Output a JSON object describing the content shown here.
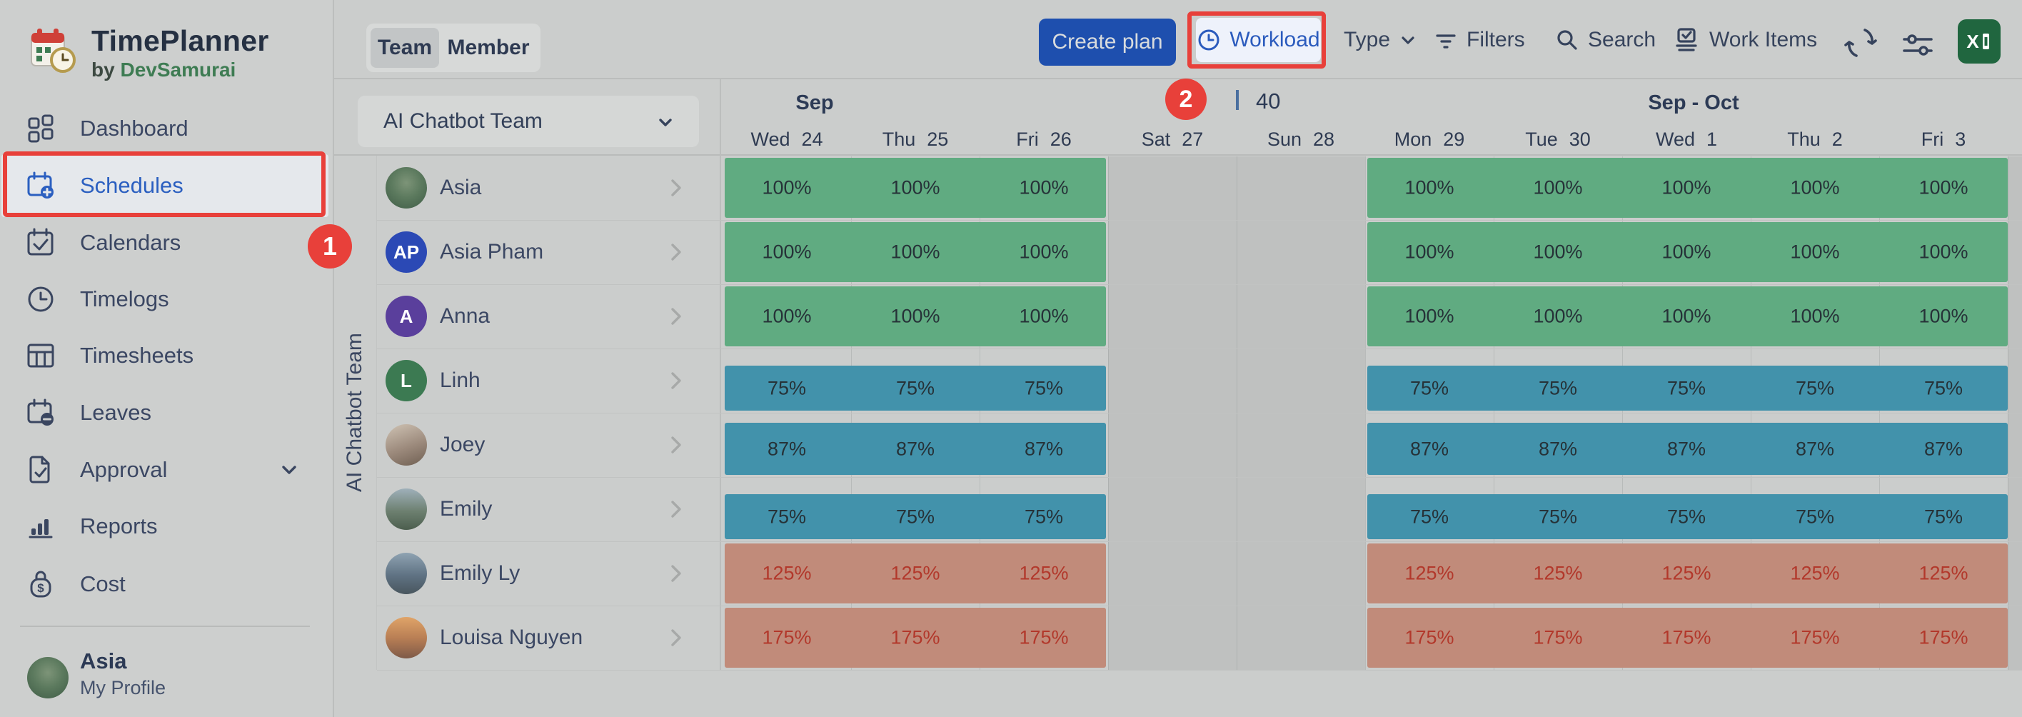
{
  "app": {
    "title": "TimePlanner",
    "byline_prefix": "by",
    "byline_brand": "DevSamurai",
    "logo_icon": "calendar-clock-logo"
  },
  "sidebar": {
    "items": [
      {
        "label": "Dashboard",
        "icon": "grid-icon",
        "active": false,
        "expandable": false
      },
      {
        "label": "Schedules",
        "icon": "calendar-plus-icon",
        "active": true,
        "expandable": false
      },
      {
        "label": "Calendars",
        "icon": "calendar-check-icon",
        "active": false,
        "expandable": false
      },
      {
        "label": "Timelogs",
        "icon": "clock-icon",
        "active": false,
        "expandable": false
      },
      {
        "label": "Timesheets",
        "icon": "table-icon",
        "active": false,
        "expandable": false
      },
      {
        "label": "Leaves",
        "icon": "calendar-minus-icon",
        "active": false,
        "expandable": false
      },
      {
        "label": "Approval",
        "icon": "document-check-icon",
        "active": false,
        "expandable": true
      },
      {
        "label": "Reports",
        "icon": "bar-chart-icon",
        "active": false,
        "expandable": false
      },
      {
        "label": "Cost",
        "icon": "money-bag-icon",
        "active": false,
        "expandable": false
      }
    ],
    "profile": {
      "name": "Asia",
      "subtitle": "My Profile",
      "avatar_palette": "park"
    }
  },
  "toolbar": {
    "view_tabs": [
      {
        "label": "Team",
        "active": true
      },
      {
        "label": "Member",
        "active": false
      }
    ],
    "create_plan_label": "Create plan",
    "workload_label": "Workload",
    "type_label": "Type",
    "filters_label": "Filters",
    "search_label": "Search",
    "work_items_label": "Work Items",
    "icons": {
      "workload": "clock-icon",
      "type": "chevron-down-icon",
      "filters": "filter-lines-icon",
      "search": "magnifier-icon",
      "work_items": "stack-check-icon",
      "sync": "sync-arrows-icon",
      "display_settings": "sliders-icon",
      "export_excel": "excel-icon"
    }
  },
  "schedule": {
    "team_selector": "AI Chatbot Team",
    "group_row_label": "AI Chatbot Team",
    "week_number": "40",
    "month_groups": [
      {
        "label": "Sep"
      },
      {
        "label": "Sep - Oct"
      }
    ],
    "days": [
      {
        "dow": "Wed",
        "date": "24",
        "weekend": false
      },
      {
        "dow": "Thu",
        "date": "25",
        "weekend": false
      },
      {
        "dow": "Fri",
        "date": "26",
        "weekend": false
      },
      {
        "dow": "Sat",
        "date": "27",
        "weekend": true
      },
      {
        "dow": "Sun",
        "date": "28",
        "weekend": true
      },
      {
        "dow": "Mon",
        "date": "29",
        "weekend": false
      },
      {
        "dow": "Tue",
        "date": "30",
        "weekend": false
      },
      {
        "dow": "Wed",
        "date": "1",
        "weekend": false
      },
      {
        "dow": "Thu",
        "date": "2",
        "weekend": false
      },
      {
        "dow": "Fri",
        "date": "3",
        "weekend": false
      }
    ],
    "members": [
      {
        "name": "Asia",
        "avatar": {
          "kind": "photo",
          "palette": "park"
        },
        "utilization": 100,
        "pct_label": "100%"
      },
      {
        "name": "Asia Pham",
        "avatar": {
          "kind": "initials",
          "text": "AP",
          "color": "#2b49b5"
        },
        "utilization": 100,
        "pct_label": "100%"
      },
      {
        "name": "Anna",
        "avatar": {
          "kind": "initials",
          "text": "A",
          "color": "#5a3f9c"
        },
        "utilization": 100,
        "pct_label": "100%"
      },
      {
        "name": "Linh",
        "avatar": {
          "kind": "initials",
          "text": "L",
          "color": "#3c7a52"
        },
        "utilization": 75,
        "pct_label": "75%"
      },
      {
        "name": "Joey",
        "avatar": {
          "kind": "photo",
          "palette": "joey"
        },
        "utilization": 87,
        "pct_label": "87%"
      },
      {
        "name": "Emily",
        "avatar": {
          "kind": "photo",
          "palette": "emily"
        },
        "utilization": 75,
        "pct_label": "75%"
      },
      {
        "name": "Emily Ly",
        "avatar": {
          "kind": "photo",
          "palette": "emilyly"
        },
        "utilization": 125,
        "pct_label": "125%"
      },
      {
        "name": "Louisa Nguyen",
        "avatar": {
          "kind": "photo",
          "palette": "louisa"
        },
        "utilization": 175,
        "pct_label": "175%"
      }
    ]
  },
  "annotations": {
    "step1": {
      "number": "1"
    },
    "step2": {
      "number": "2"
    }
  },
  "colors": {
    "bar_full": "#60ab81",
    "bar_under": "#4292ab",
    "bar_over": "#c18b7a",
    "bar_text": "#263238",
    "bar_over_text": "#b2382b",
    "weekend_band": "#bfc1c0",
    "annotation_red": "#e8403a",
    "accent_blue": "#2b5bbd",
    "create_button_blue": "#1e4fae",
    "brand_green": "#3e7c53",
    "excel_green": "#20663f"
  }
}
